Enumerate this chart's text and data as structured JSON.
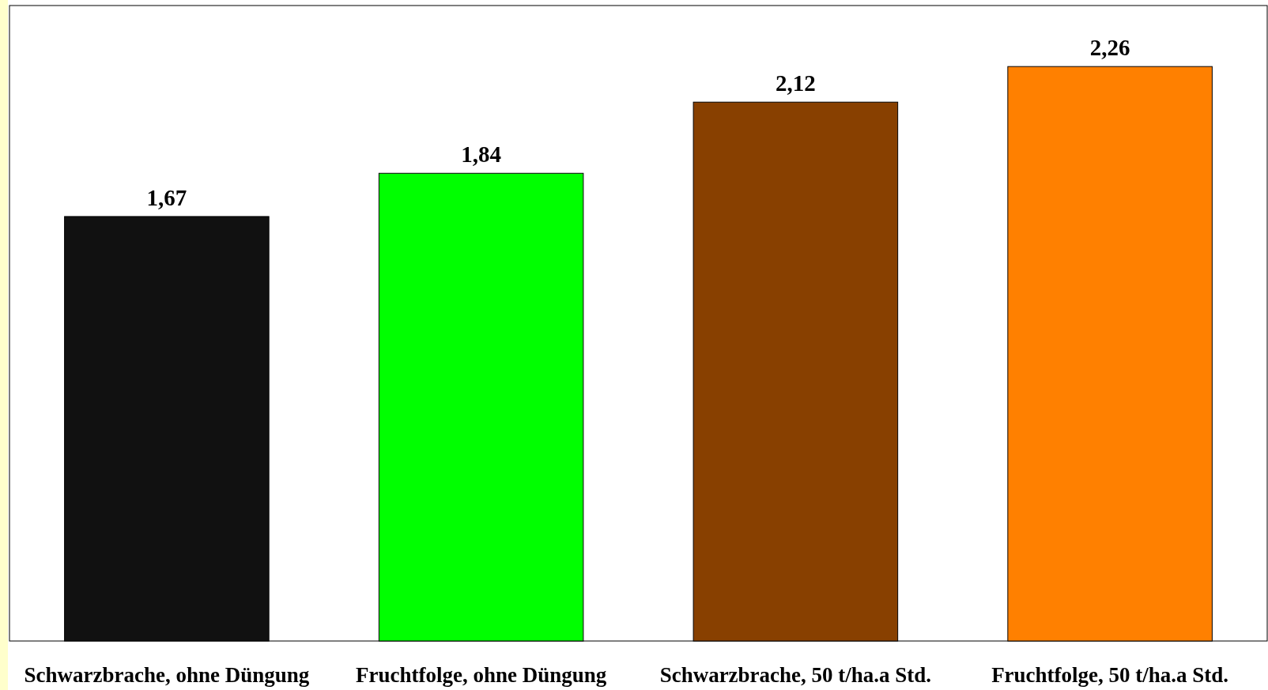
{
  "chart_data": {
    "type": "bar",
    "categories": [
      "Schwarzbrache, ohne Düngung",
      "Fruchtfolge, ohne Düngung",
      "Schwarzbrache, 50 t/ha.a Std.",
      "Fruchtfolge, 50 t/ha.a Std."
    ],
    "values": [
      1.67,
      1.84,
      2.12,
      2.26
    ],
    "colors": [
      "#111111",
      "#00ff00",
      "#884000",
      "#ff8000"
    ],
    "value_labels": [
      "1,67",
      "1,84",
      "2,12",
      "2,26"
    ],
    "ylim": [
      0,
      2.5
    ],
    "tick_labels": "x"
  }
}
